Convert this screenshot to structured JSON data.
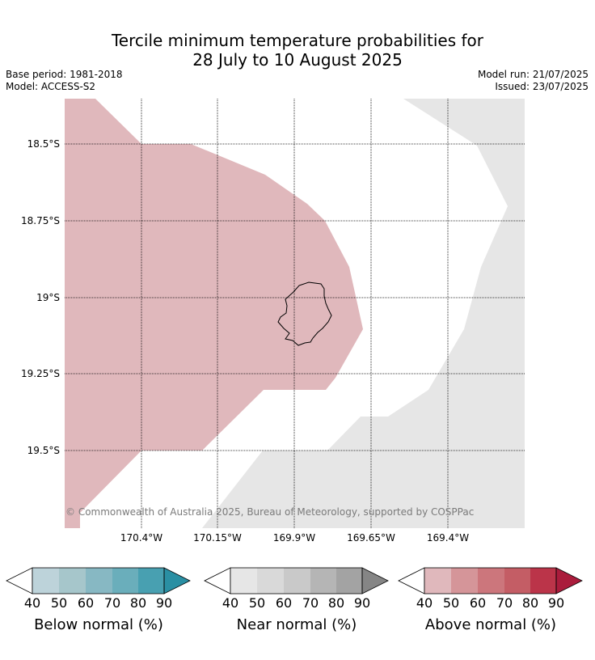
{
  "title_line1": "Tercile minimum temperature probabilities for",
  "title_line2": "28 July to 10 August 2025",
  "meta": {
    "base_period": "Base period: 1981-2018",
    "model": "Model: ACCESS-S2",
    "model_run": "Model run: 21/07/2025",
    "issued": "Issued: 23/07/2025"
  },
  "map": {
    "lat_labels": [
      "18.5°S",
      "18.75°S",
      "19°S",
      "19.25°S",
      "19.5°S"
    ],
    "lon_labels": [
      "170.4°W",
      "170.15°W",
      "169.9°W",
      "169.65°W",
      "169.4°W"
    ],
    "copyright": "© Commonwealth of Australia 2025, Bureau of Meteorology, supported by COSPPac",
    "colors": {
      "above_40_50": "#e0b8bc",
      "near_40_50": "#e6e6e6"
    }
  },
  "colorbars": [
    {
      "title": "Below normal (%)",
      "ticks": [
        "40",
        "50",
        "60",
        "70",
        "80",
        "90"
      ],
      "colors": [
        "#bdd3da",
        "#a6c6cb",
        "#87b8c3",
        "#6aaebb",
        "#48a0b1",
        "#2a8fa3"
      ]
    },
    {
      "title": "Near normal (%)",
      "ticks": [
        "40",
        "50",
        "60",
        "70",
        "80",
        "90"
      ],
      "colors": [
        "#e6e6e6",
        "#d9d9d9",
        "#c9c9c9",
        "#b5b5b5",
        "#a3a3a3",
        "#858585"
      ]
    },
    {
      "title": "Above normal (%)",
      "ticks": [
        "40",
        "50",
        "60",
        "70",
        "80",
        "90"
      ],
      "colors": [
        "#e0b8bc",
        "#d59599",
        "#cc767c",
        "#c45d65",
        "#bb3449",
        "#aa1c3c"
      ]
    }
  ]
}
